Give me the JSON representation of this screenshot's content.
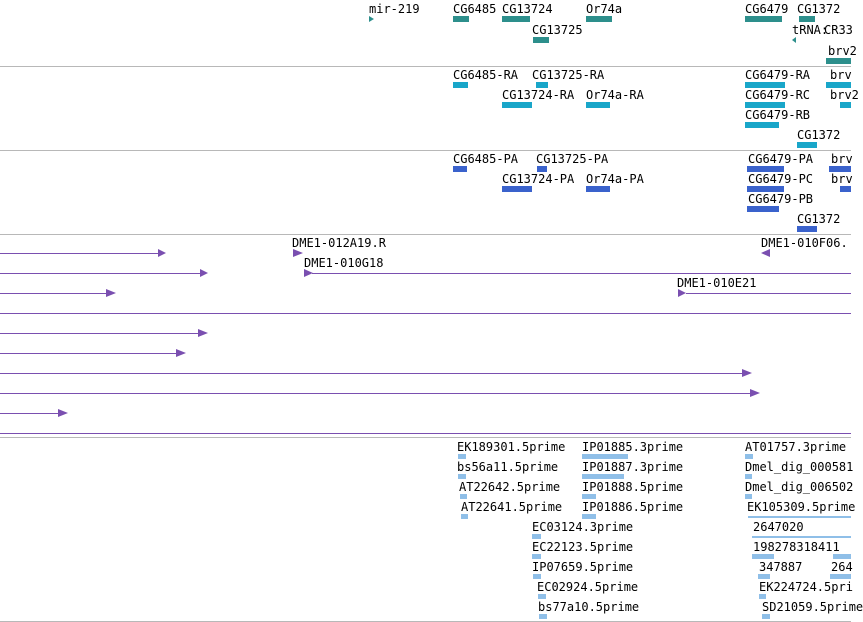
{
  "colors": {
    "gene": "#2d8f8c",
    "transcript": "#19a6c9",
    "protein": "#3a62cc",
    "clone": "#7a4fb0",
    "est": "#8fbfe8",
    "divider": "#b8b8b8"
  },
  "gene_track": {
    "labels": [
      "mir-219",
      "CG6485",
      "CG13724",
      "Or74a",
      "CG6479",
      "CG1372",
      "CG13725",
      "tRNA:",
      "CR33",
      "brv2"
    ]
  },
  "transcript_track": {
    "labels": [
      "CG6485-RA",
      "CG13725-RA",
      "CG13724-RA",
      "Or74a-RA",
      "CG6479-RA",
      "brv",
      "CG6479-RC",
      "brv2",
      "CG6479-RB",
      "CG1372"
    ]
  },
  "protein_track": {
    "labels": [
      "CG6485-PA",
      "CG13725-PA",
      "CG13724-PA",
      "Or74a-PA",
      "CG6479-PA",
      "brv",
      "CG6479-PC",
      "brv",
      "CG6479-PB",
      "CG1372"
    ]
  },
  "clone_track": {
    "labels": [
      "DME1-012A19.R",
      "DME1-010F06.",
      "DME1-010G18",
      "DME1-010E21"
    ]
  },
  "est_track": {
    "labels": [
      "EK189301.5prime",
      "IP01885.3prime",
      "AT01757.3prime",
      "bs56a11.5prime",
      "IP01887.3prime",
      "Dmel_dig_000581",
      "AT22642.5prime",
      "IP01888.5prime",
      "Dmel_dig_006502",
      "AT22641.5prime",
      "IP01886.5prime",
      "EK105309.5prime",
      "EC03124.3prime",
      "2647020",
      "EC22123.5prime",
      "198278318411",
      "IP07659.5prime",
      "347887",
      "264",
      "EC02924.5prime",
      "EK224724.5pri",
      "bs77a10.5prime",
      "SD21059.5prime"
    ]
  }
}
